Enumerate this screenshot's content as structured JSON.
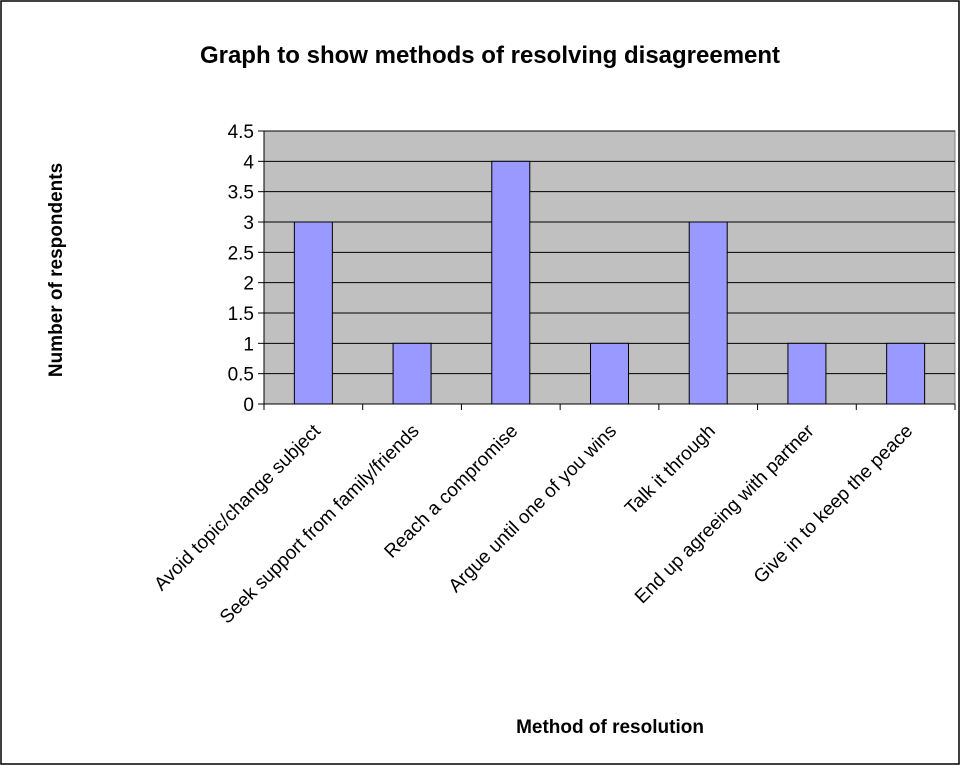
{
  "chart_data": {
    "type": "bar",
    "title": "Graph to show methods of resolving disagreement",
    "xlabel": "Method of resolution",
    "ylabel": "Number of respondents",
    "categories": [
      "Avoid topic/change subject",
      "Seek support from family/friends",
      "Reach a compromise",
      "Argue until one of you wins",
      "Talk it through",
      "End up agreeing with partner",
      "Give in to keep the peace"
    ],
    "values": [
      3,
      1,
      4,
      1,
      3,
      1,
      1
    ],
    "ylim": [
      0,
      4.5
    ],
    "yticks": [
      "0",
      "0.5",
      "1",
      "1.5",
      "2",
      "2.5",
      "3",
      "3.5",
      "4",
      "4.5"
    ],
    "grid": true,
    "legend": "none",
    "colors": {
      "bar_fill": "#9999ff",
      "plot_background": "#c0c0c0",
      "gridline": "#000000",
      "page_border": "#000000"
    }
  }
}
